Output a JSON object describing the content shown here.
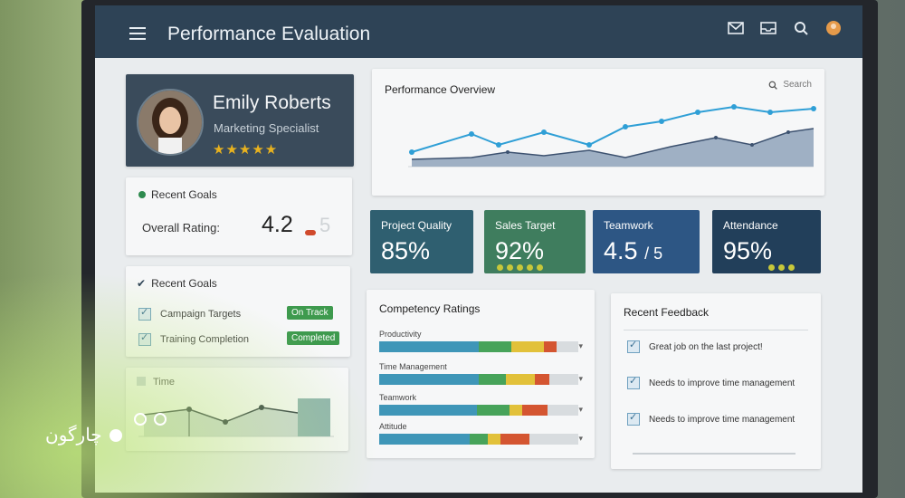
{
  "app": {
    "title": "Performance Evaluation"
  },
  "profile": {
    "name": "Emily Roberts",
    "role": "Marketing Specialist",
    "stars": "★★★★★",
    "rating_stars": 5
  },
  "goals_card": {
    "header": "Recent Goals",
    "overall_label": "Overall Rating:",
    "score": "4.2",
    "out_of": "5"
  },
  "goals_list": {
    "header": "Recent Goals",
    "items": [
      {
        "label": "Campaign Targets",
        "status": "On Track"
      },
      {
        "label": "Training Completion",
        "status": "Completed"
      }
    ]
  },
  "mini_chart": {
    "header": "Time"
  },
  "overview": {
    "title": "Performance Overview",
    "search_placeholder": "Search"
  },
  "kpis": [
    {
      "label": "Project Quality",
      "value": "85%",
      "color": "#2f5f70"
    },
    {
      "label": "Sales Target",
      "value": "92%",
      "color": "#3f7d5e"
    },
    {
      "label": "Teamwork",
      "value": "4.5",
      "suffix": "/ 5",
      "color": "#2d5684"
    },
    {
      "label": "Attendance",
      "value": "95%",
      "color": "#223f5a"
    }
  ],
  "competency": {
    "title": "Competency Ratings",
    "rows": [
      {
        "name": "Productivity"
      },
      {
        "name": "Time Management"
      },
      {
        "name": "Teamwork"
      },
      {
        "name": "Attitude"
      }
    ]
  },
  "feedback": {
    "title": "Recent Feedback",
    "items": [
      "Great job on the last project!",
      "Needs to improve time management",
      "Needs to improve time management"
    ]
  },
  "brand": {
    "name": "چارگون"
  },
  "colors": {
    "topbar": "#2e4356",
    "accent_blue": "#2f9fd6",
    "green": "#3e9a4e",
    "star": "#e8b21f"
  }
}
